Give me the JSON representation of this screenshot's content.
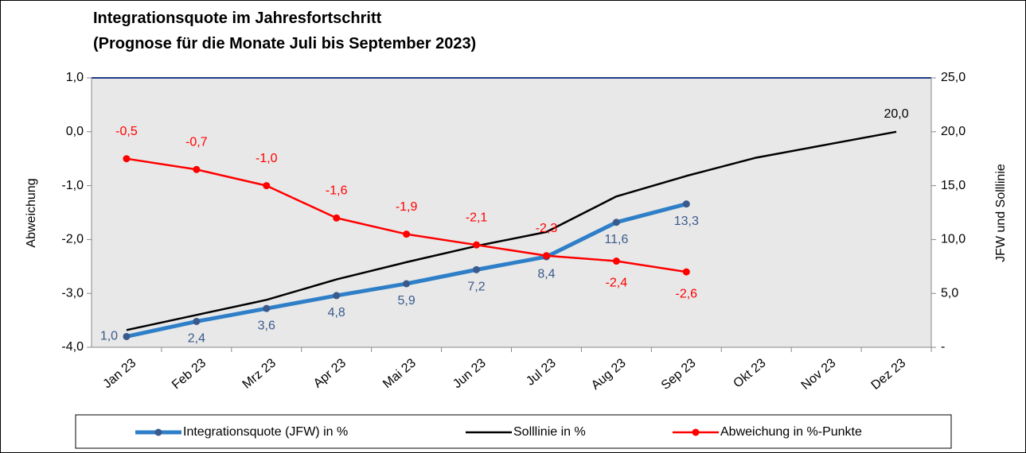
{
  "chart_data": {
    "type": "line",
    "title": "Integrationsquote im Jahresfortschritt",
    "subtitle": "(Prognose für die Monate Juli bis September 2023)",
    "ylabel": "Abweichung",
    "y2label": "JFW und Solllinie",
    "categories": [
      "Jan 23",
      "Feb 23",
      "Mrz 23",
      "Apr 23",
      "Mai 23",
      "Jun 23",
      "Jul 23",
      "Aug 23",
      "Sep 23",
      "Okt 23",
      "Nov 23",
      "Dez 23"
    ],
    "series": [
      {
        "name": "Integrationsquote (JFW) in %",
        "color": "#2f7fc8",
        "axis": "y2",
        "marker": true,
        "width": 5,
        "values": [
          1.0,
          2.4,
          3.6,
          4.8,
          5.9,
          7.2,
          8.4,
          11.6,
          13.3,
          null,
          null,
          null
        ],
        "value_labels": [
          "1,0",
          "2,4",
          "3,6",
          "4,8",
          "5,9",
          "7,2",
          "8,4",
          "11,6",
          "13,3",
          null,
          null,
          null
        ],
        "label_color": "#3a5a8c"
      },
      {
        "name": "Solllinie in %",
        "color": "#000000",
        "axis": "y2",
        "marker": false,
        "width": 2.5,
        "values": [
          1.6,
          3.0,
          4.4,
          6.3,
          7.9,
          9.4,
          10.7,
          14.0,
          15.9,
          17.6,
          18.8,
          20.0
        ],
        "value_labels": [
          null,
          null,
          null,
          null,
          null,
          null,
          null,
          null,
          null,
          null,
          null,
          "20,0"
        ],
        "label_color": "#000000"
      },
      {
        "name": "Abweichung in %-Punkte",
        "color": "#ff0000",
        "axis": "y",
        "marker": true,
        "width": 2.5,
        "values": [
          -0.5,
          -0.7,
          -1.0,
          -1.6,
          -1.9,
          -2.1,
          -2.3,
          -2.4,
          -2.6,
          null,
          null,
          null
        ],
        "value_labels": [
          "-0,5",
          "-0,7",
          "-1,0",
          "-1,6",
          "-1,9",
          "-2,1",
          "-2,3",
          "-2,4",
          "-2,6",
          null,
          null,
          null
        ],
        "label_color": "#ff0000"
      }
    ],
    "ylim": [
      -4,
      1
    ],
    "yticks": [
      {
        "value": 1,
        "label": "1,0"
      },
      {
        "value": 0,
        "label": "0,0"
      },
      {
        "value": -1,
        "label": "-1,0"
      },
      {
        "value": -2,
        "label": "-2,0"
      },
      {
        "value": -3,
        "label": "-3,0"
      },
      {
        "value": -4,
        "label": "-4,0"
      }
    ],
    "y2lim": [
      0,
      25
    ],
    "y2ticks": [
      {
        "value": 0,
        "label": "-"
      },
      {
        "value": 5,
        "label": "5,0"
      },
      {
        "value": 10,
        "label": "10,0"
      },
      {
        "value": 15,
        "label": "15,0"
      },
      {
        "value": 20,
        "label": "20,0"
      },
      {
        "value": 25,
        "label": "25,0"
      }
    ],
    "legend": "bottom"
  }
}
